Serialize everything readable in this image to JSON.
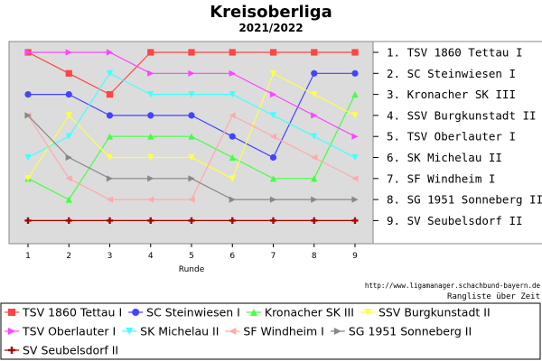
{
  "chart_data": {
    "type": "line",
    "title": "Kreisoberliga",
    "subtitle": "2021/2022",
    "xlabel": "Runde",
    "ylabel": "",
    "categories": [
      "1",
      "2",
      "3",
      "4",
      "5",
      "6",
      "7",
      "8",
      "9"
    ],
    "ylim": [
      0.5,
      9.9
    ],
    "grid": false,
    "y_reversed": true,
    "ranking_labels": [
      "1. TSV 1860 Tettau I",
      "2. SC Steinwiesen I",
      "3. Kronacher SK III",
      "4. SSV Burgkunstadt II",
      "5. TSV Oberlauter I",
      "6. SK Michelau II",
      "7. SF Windheim I",
      "8. SG 1951 Sonneberg II",
      "9. SV Seubelsdorf II"
    ],
    "series": [
      {
        "name": "TSV 1860 Tettau I",
        "color": "#ff4444",
        "marker": "square",
        "values": [
          1,
          2,
          3,
          1,
          1,
          1,
          1,
          1,
          1
        ]
      },
      {
        "name": "SC Steinwiesen I",
        "color": "#4444ff",
        "marker": "circle",
        "values": [
          3,
          3,
          4,
          4,
          4,
          5,
          6,
          2,
          2
        ]
      },
      {
        "name": "Kronacher SK III",
        "color": "#44ff44",
        "marker": "triangle-up",
        "values": [
          7,
          8,
          5,
          5,
          5,
          6,
          7,
          7,
          3
        ]
      },
      {
        "name": "SSV Burgkunstadt II",
        "color": "#ffff44",
        "marker": "triangle-down",
        "values": [
          7,
          4,
          6,
          6,
          6,
          7,
          2,
          3,
          4
        ]
      },
      {
        "name": "TSV Oberlauter I",
        "color": "#ff44ff",
        "marker": "triangle-right",
        "values": [
          1,
          1,
          1,
          2,
          2,
          2,
          3,
          4,
          5
        ]
      },
      {
        "name": "SK Michelau II",
        "color": "#44ffff",
        "marker": "triangle-down",
        "values": [
          6,
          5,
          2,
          3,
          3,
          3,
          4,
          5,
          6
        ]
      },
      {
        "name": "SF Windheim I",
        "color": "#ffaaaa",
        "marker": "triangle-left",
        "values": [
          4,
          7,
          8,
          8,
          8,
          4,
          5,
          6,
          7
        ]
      },
      {
        "name": "SG 1951 Sonneberg II",
        "color": "#888888",
        "marker": "triangle-right",
        "values": [
          4,
          6,
          7,
          7,
          7,
          8,
          8,
          8,
          8
        ]
      },
      {
        "name": "SV Seubelsdorf II",
        "color": "#aa0000",
        "marker": "cross",
        "values": [
          9,
          9,
          9,
          9,
          9,
          9,
          9,
          9,
          9
        ]
      }
    ]
  },
  "footer": {
    "url": "http://www.ligamanager.schachbund-bayern.de",
    "note": "Rangliste über Zeit"
  }
}
